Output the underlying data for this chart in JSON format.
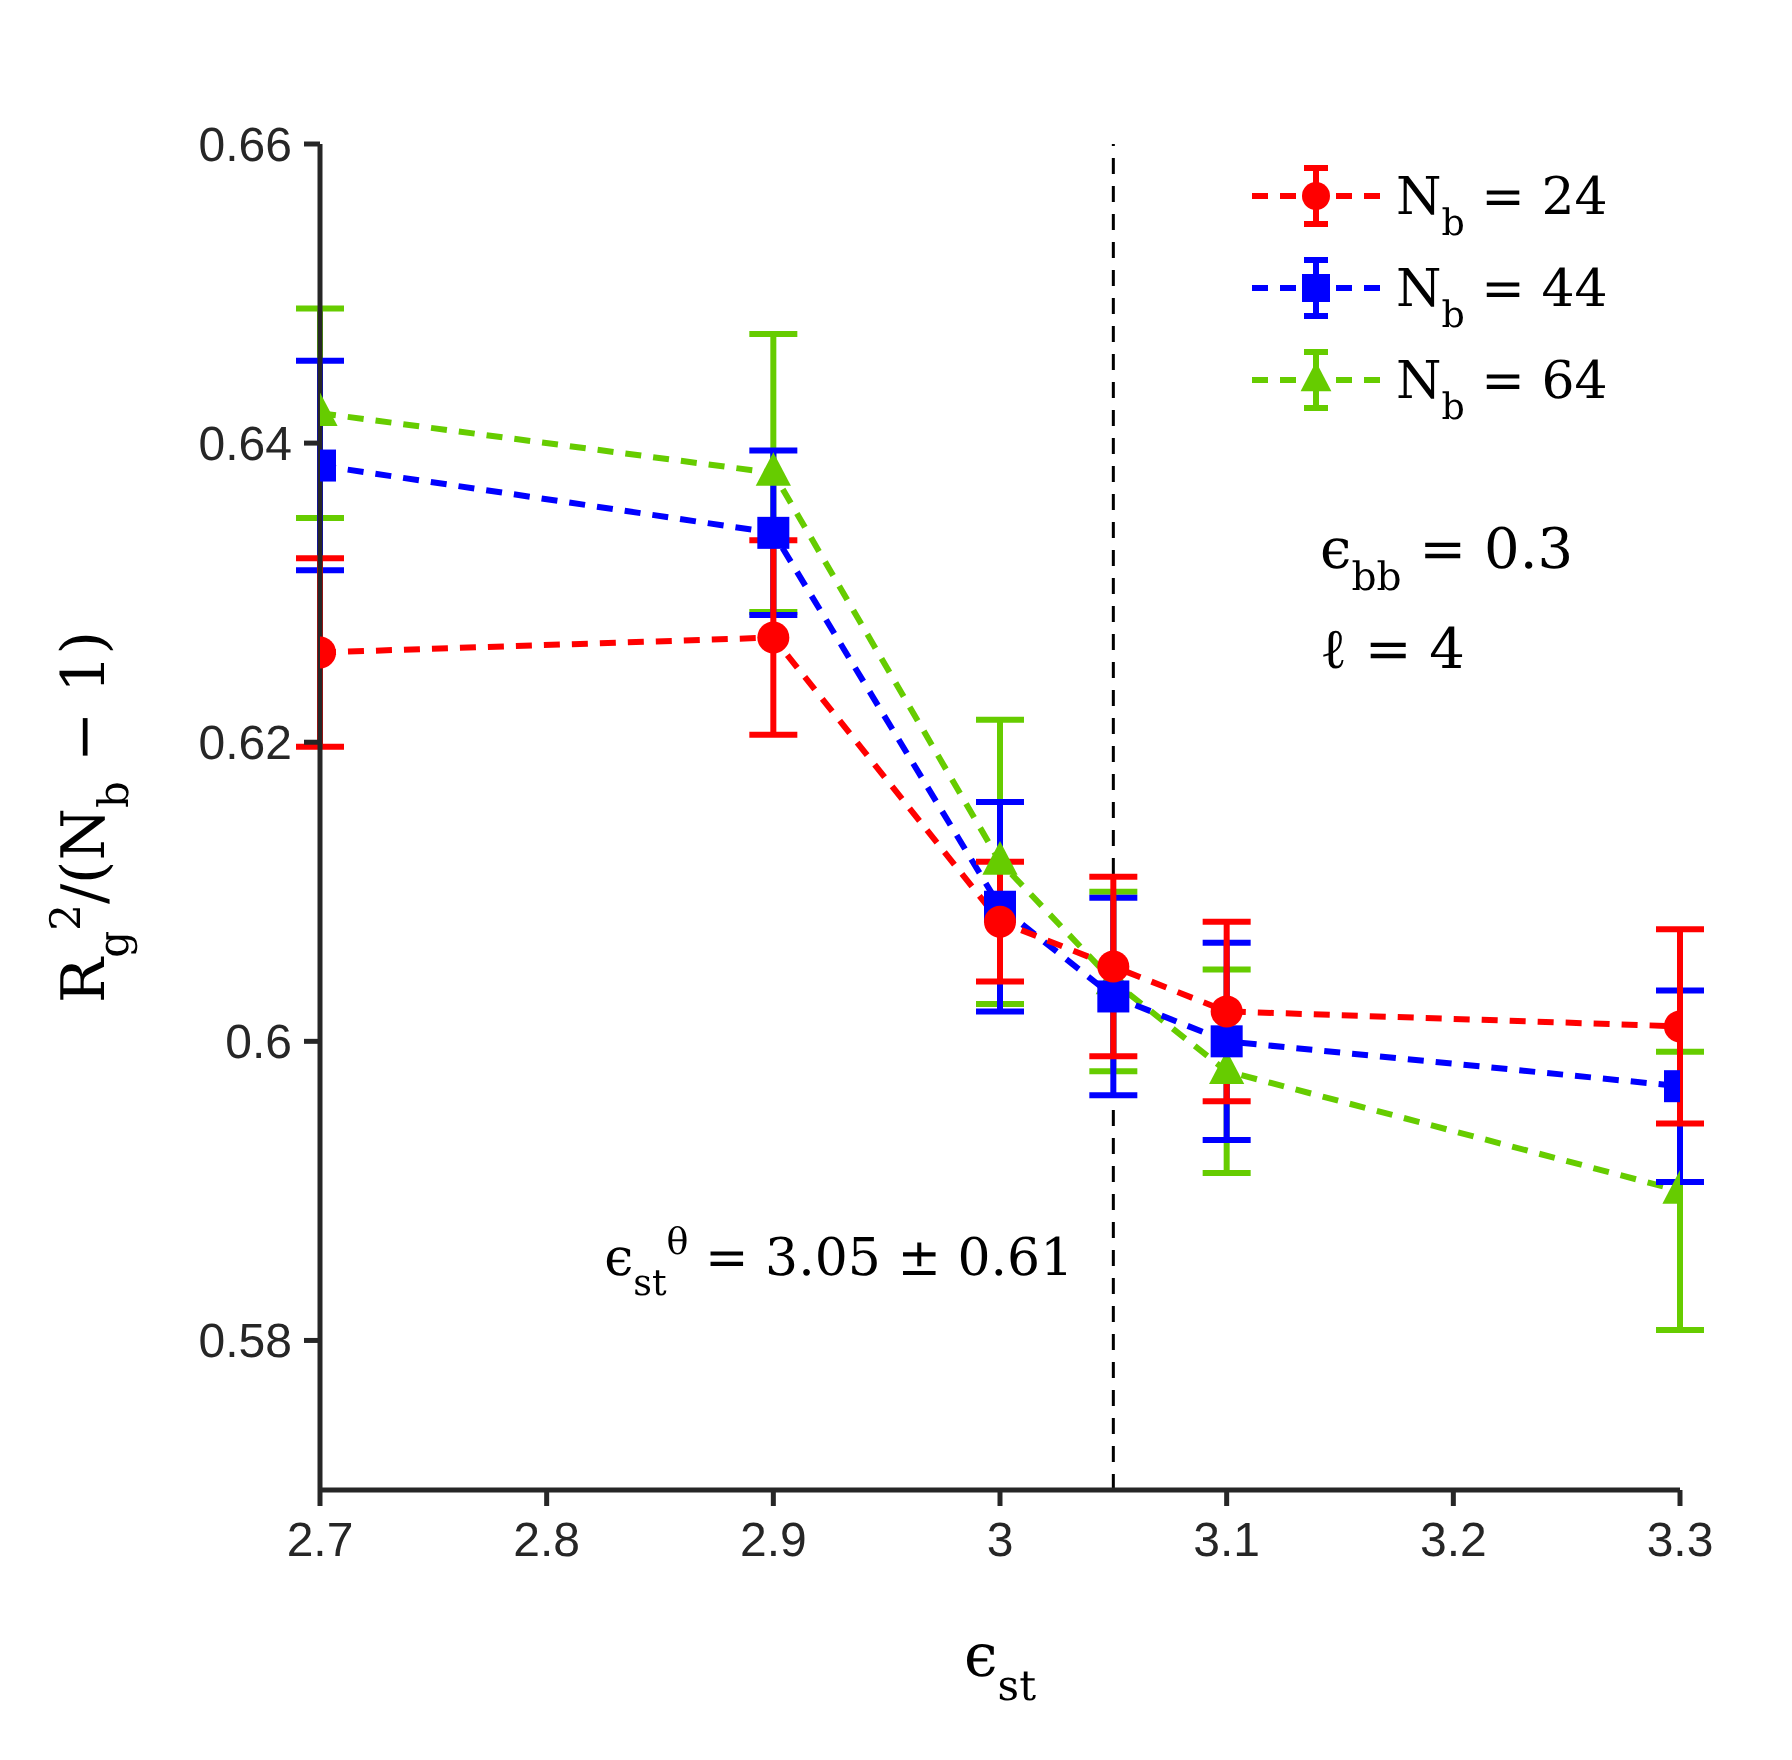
{
  "chart_data": {
    "type": "line",
    "xlabel": "ϵ$_{st}$",
    "ylabel": "R$_{g}$$^{2}$/(N$_{b}$ − 1)",
    "x": [
      2.7,
      2.9,
      3.0,
      3.05,
      3.1,
      3.3
    ],
    "series": [
      {
        "name": "N$_{b}$ = 24",
        "color": "#ff0000",
        "marker": "circle",
        "values": [
          0.626,
          0.627,
          0.608,
          0.605,
          0.602,
          0.601
        ],
        "errors": [
          0.0063,
          0.0065,
          0.004,
          0.006,
          0.006,
          0.0065
        ]
      },
      {
        "name": "N$_{b}$ = 44",
        "color": "#0000ff",
        "marker": "square",
        "values": [
          0.6385,
          0.634,
          0.609,
          0.603,
          0.6,
          0.597
        ],
        "errors": [
          0.007,
          0.0055,
          0.007,
          0.0066,
          0.0066,
          0.0064
        ]
      },
      {
        "name": "N$_{b}$ = 64",
        "color": "#66cc00",
        "marker": "triangle",
        "values": [
          0.642,
          0.638,
          0.612,
          0.604,
          0.598,
          0.59
        ],
        "errors": [
          0.007,
          0.0093,
          0.0095,
          0.006,
          0.0068,
          0.0093
        ]
      }
    ],
    "line_style": "dashed",
    "grid": false,
    "legend": "top right",
    "xlim": [
      2.7,
      3.3
    ],
    "xticks": [
      2.7,
      2.8,
      2.9,
      3,
      3.1,
      3.2,
      3.3
    ],
    "ylim": [
      0.57,
      0.66
    ],
    "yticks": [
      0.58,
      0.6,
      0.62,
      0.64,
      0.66
    ],
    "ref_lines": [
      {
        "axis": "x",
        "value": 3.05,
        "label": "ϵ$_{st}$$^{θ}$ = 3.05 ± 0.61",
        "color": "#000000",
        "line_style": "dashed"
      }
    ],
    "annotations": [
      "ϵ$_{bb}$ = 0.3",
      "ℓ = 4"
    ]
  }
}
